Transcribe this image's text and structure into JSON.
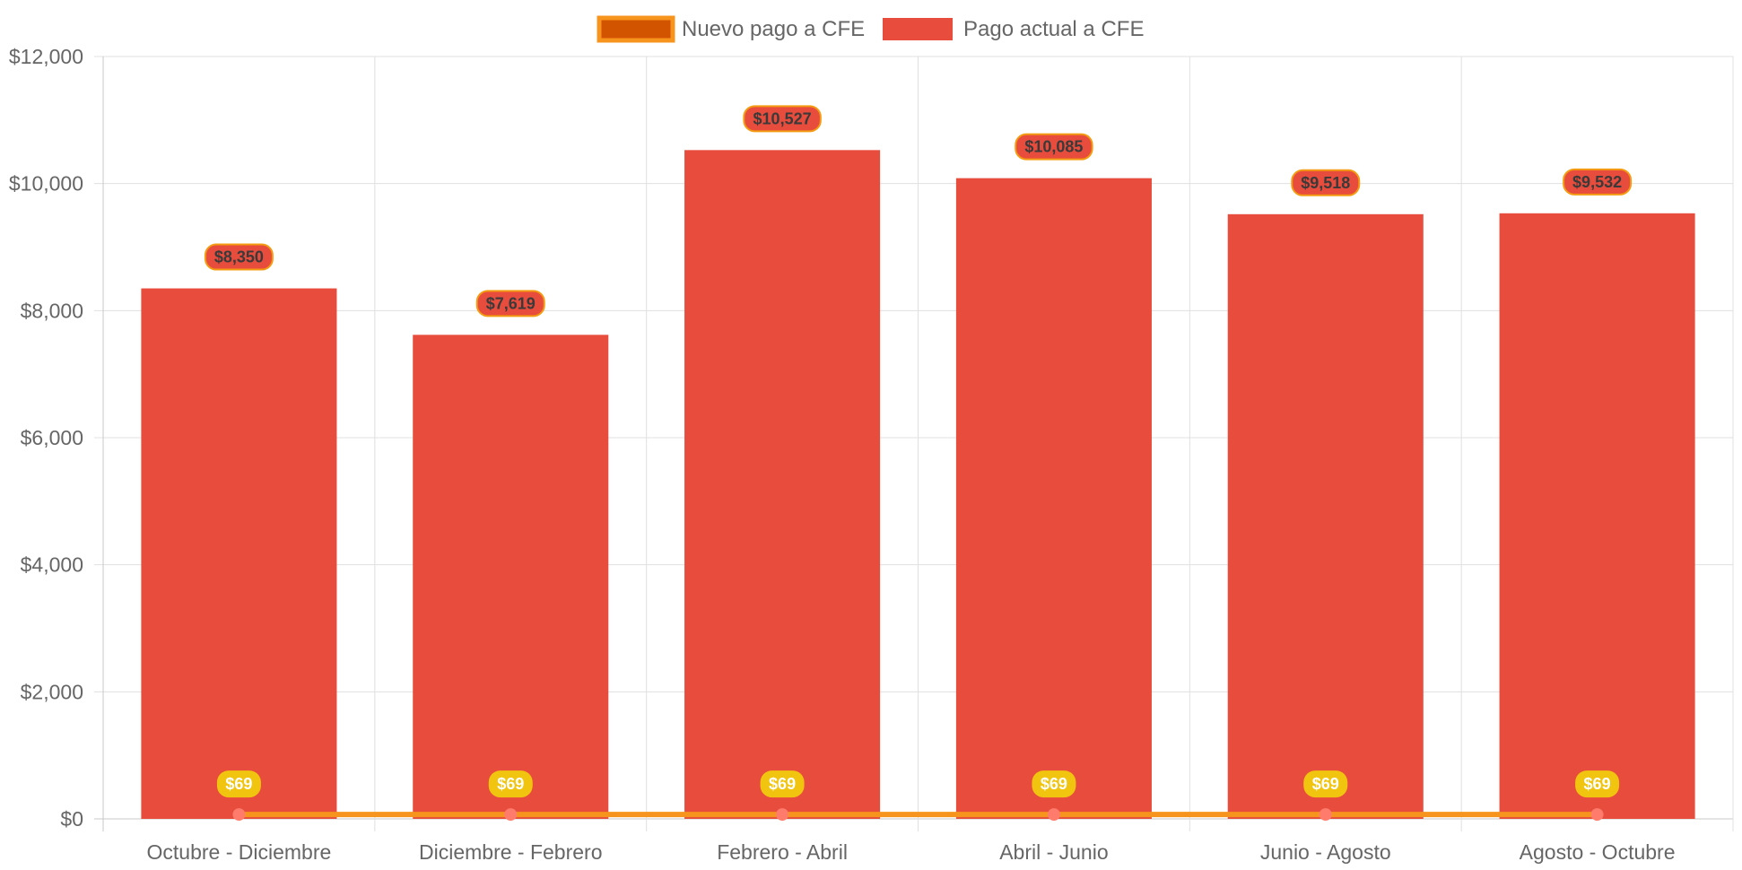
{
  "chart_data": {
    "type": "bar",
    "categories": [
      "Octubre - Diciembre",
      "Diciembre - Febrero",
      "Febrero - Abril",
      "Abril - Junio",
      "Junio - Agosto",
      "Agosto - Octubre"
    ],
    "series": [
      {
        "name": "Nuevo pago a CFE",
        "type": "line",
        "values": [
          69,
          69,
          69,
          69,
          69,
          69
        ],
        "data_labels": [
          "$69",
          "$69",
          "$69",
          "$69",
          "$69",
          "$69"
        ],
        "color": "#f7941d",
        "fill_color": "#d35400",
        "point_color": "#ff7b6b",
        "label_bg": "#f1c40f"
      },
      {
        "name": "Pago actual a CFE",
        "type": "bar",
        "values": [
          8350,
          7619,
          10527,
          10085,
          9518,
          9532
        ],
        "data_labels": [
          "$8,350",
          "$7,619",
          "$10,527",
          "$10,085",
          "$9,518",
          "$9,532"
        ],
        "color": "#e74c3c",
        "label_border": "#f39c12"
      }
    ],
    "y_ticks": [
      "$0",
      "$2,000",
      "$4,000",
      "$6,000",
      "$8,000",
      "$10,000",
      "$12,000"
    ],
    "ylim": [
      0,
      12000
    ],
    "grid": true,
    "legend": "top-center",
    "title": "",
    "xlabel": "",
    "ylabel": ""
  }
}
